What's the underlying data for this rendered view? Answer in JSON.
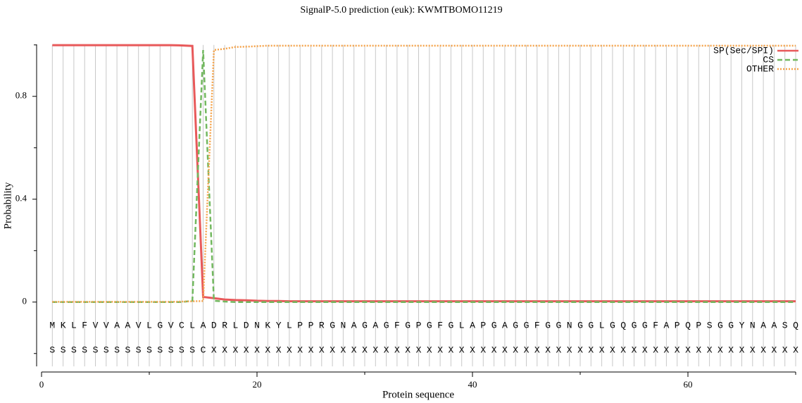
{
  "chart_data": {
    "type": "line",
    "title": "SignalP-5.0 prediction (euk):  KWMTBOMO11219",
    "x_label": "Protein sequence",
    "y_label": "Probability",
    "x": [
      1,
      2,
      3,
      4,
      5,
      6,
      7,
      8,
      9,
      10,
      11,
      12,
      13,
      14,
      15,
      16,
      17,
      18,
      19,
      20,
      21,
      22,
      23,
      24,
      25,
      26,
      27,
      28,
      29,
      30,
      31,
      32,
      33,
      34,
      35,
      36,
      37,
      38,
      39,
      40,
      41,
      42,
      43,
      44,
      45,
      46,
      47,
      48,
      49,
      50,
      51,
      52,
      53,
      54,
      55,
      56,
      57,
      58,
      59,
      60,
      61,
      62,
      63,
      64,
      65,
      66,
      67,
      68,
      69,
      70
    ],
    "sequence": [
      "M",
      "K",
      "L",
      "F",
      "V",
      "V",
      "A",
      "A",
      "V",
      "L",
      "G",
      "V",
      "C",
      "L",
      "A",
      "D",
      "R",
      "L",
      "D",
      "N",
      "K",
      "Y",
      "L",
      "P",
      "P",
      "R",
      "G",
      "N",
      "A",
      "G",
      "A",
      "G",
      "F",
      "G",
      "P",
      "G",
      "F",
      "G",
      "L",
      "A",
      "P",
      "G",
      "A",
      "G",
      "G",
      "F",
      "G",
      "G",
      "N",
      "G",
      "G",
      "L",
      "G",
      "Q",
      "G",
      "G",
      "F",
      "A",
      "P",
      "Q",
      "P",
      "S",
      "G",
      "G",
      "Y",
      "N",
      "A",
      "A",
      "S",
      "Q"
    ],
    "states": [
      "S",
      "S",
      "S",
      "S",
      "S",
      "S",
      "S",
      "S",
      "S",
      "S",
      "S",
      "S",
      "S",
      "S",
      "C",
      "X",
      "X",
      "X",
      "X",
      "X",
      "X",
      "X",
      "X",
      "X",
      "X",
      "X",
      "X",
      "X",
      "X",
      "X",
      "X",
      "X",
      "X",
      "X",
      "X",
      "X",
      "X",
      "X",
      "X",
      "X",
      "X",
      "X",
      "X",
      "X",
      "X",
      "X",
      "X",
      "X",
      "X",
      "X",
      "X",
      "X",
      "X",
      "X",
      "X",
      "X",
      "X",
      "X",
      "X",
      "X",
      "X",
      "X",
      "X",
      "X",
      "X",
      "X",
      "X",
      "X",
      "X",
      "X"
    ],
    "series": [
      {
        "name": "SP(Sec/SPI)",
        "color": "#e8595a",
        "dash": "solid",
        "values": [
          0.999,
          0.999,
          0.999,
          0.999,
          0.999,
          0.999,
          0.999,
          0.999,
          0.999,
          0.999,
          0.999,
          0.999,
          0.998,
          0.996,
          0.02,
          0.015,
          0.01,
          0.008,
          0.007,
          0.005,
          0.004,
          0.004,
          0.003,
          0.003,
          0.003,
          0.003,
          0.003,
          0.003,
          0.003,
          0.003,
          0.003,
          0.003,
          0.003,
          0.003,
          0.003,
          0.003,
          0.003,
          0.003,
          0.003,
          0.003,
          0.003,
          0.003,
          0.003,
          0.003,
          0.003,
          0.003,
          0.003,
          0.003,
          0.003,
          0.003,
          0.003,
          0.003,
          0.003,
          0.003,
          0.003,
          0.003,
          0.003,
          0.003,
          0.003,
          0.003,
          0.003,
          0.003,
          0.003,
          0.003,
          0.003,
          0.003,
          0.003,
          0.003,
          0.003,
          0.003
        ]
      },
      {
        "name": "CS",
        "color": "#72b85f",
        "dash": "dashed",
        "values": [
          0,
          0,
          0,
          0,
          0,
          0,
          0,
          0,
          0,
          0,
          0,
          0,
          0,
          0.005,
          0.98,
          0.005,
          0.002,
          0,
          0,
          0,
          0,
          0,
          0,
          0,
          0,
          0,
          0,
          0,
          0,
          0,
          0,
          0,
          0,
          0,
          0,
          0,
          0,
          0,
          0,
          0,
          0,
          0,
          0,
          0,
          0,
          0,
          0,
          0,
          0,
          0,
          0,
          0,
          0,
          0,
          0,
          0,
          0,
          0,
          0,
          0,
          0,
          0,
          0,
          0,
          0,
          0,
          0,
          0,
          0,
          0
        ]
      },
      {
        "name": "OTHER",
        "color": "#f5a34a",
        "dash": "dotted",
        "values": [
          0.001,
          0.001,
          0.001,
          0.001,
          0.001,
          0.001,
          0.001,
          0.001,
          0.001,
          0.001,
          0.001,
          0.001,
          0.002,
          0.003,
          0.004,
          0.98,
          0.985,
          0.992,
          0.993,
          0.995,
          0.997,
          0.997,
          0.997,
          0.997,
          0.997,
          0.997,
          0.997,
          0.997,
          0.997,
          0.997,
          0.997,
          0.997,
          0.997,
          0.997,
          0.997,
          0.997,
          0.997,
          0.997,
          0.997,
          0.997,
          0.997,
          0.997,
          0.997,
          0.997,
          0.997,
          0.997,
          0.997,
          0.997,
          0.997,
          0.997,
          0.997,
          0.997,
          0.997,
          0.997,
          0.997,
          0.997,
          0.997,
          0.997,
          0.997,
          0.997,
          0.997,
          0.997,
          0.997,
          0.997,
          0.997,
          0.997,
          0.997,
          0.997,
          0.997,
          0.997
        ]
      }
    ],
    "xlim": [
      0,
      70
    ],
    "xticks": [
      0,
      20,
      40,
      60
    ],
    "xminor_ticks": [
      10,
      30,
      50,
      70
    ],
    "ylim": [
      -0.25,
      1.0
    ],
    "yticks": [
      0,
      0.4,
      0.8
    ],
    "yminor_ticks": [
      -0.2,
      0.2,
      0.6,
      1.0
    ],
    "grid": true,
    "legend": "top-right"
  }
}
